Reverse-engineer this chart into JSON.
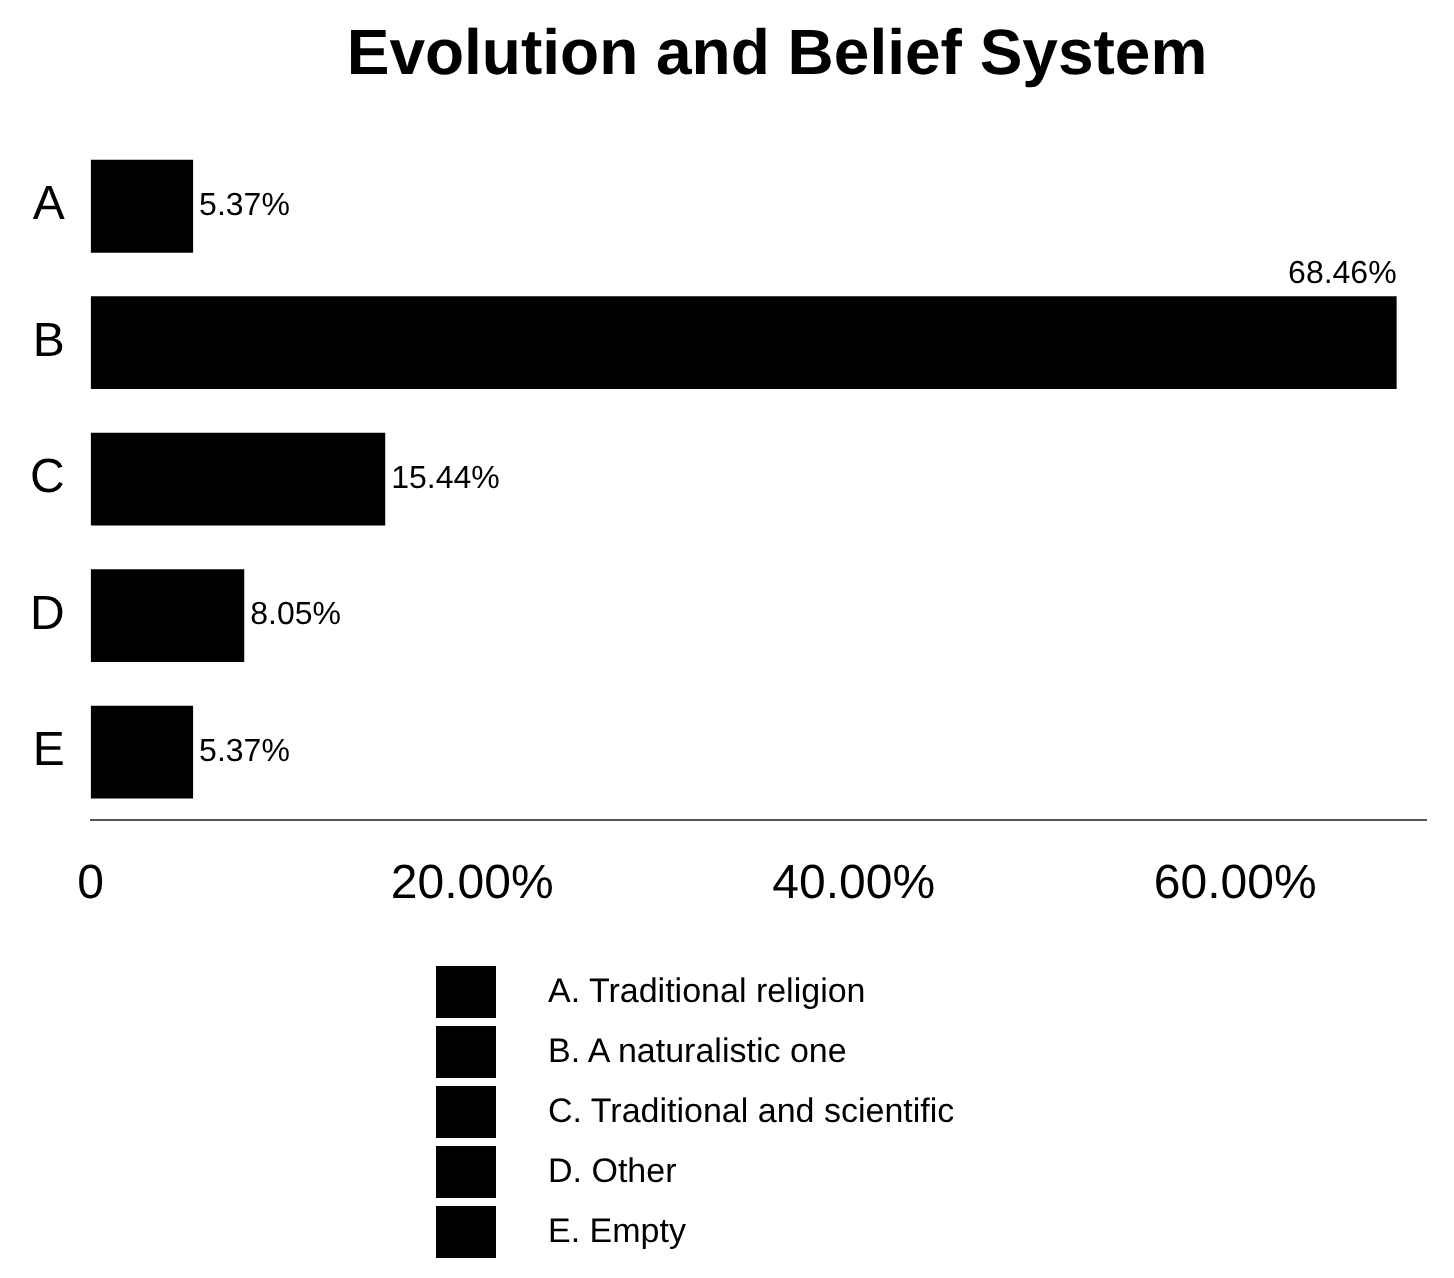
{
  "chart_data": {
    "type": "bar",
    "title": "Evolution and Belief System",
    "orientation": "horizontal",
    "categories": [
      "A",
      "B",
      "C",
      "D",
      "E"
    ],
    "series": [
      {
        "name": "A. Traditional religion",
        "color": "#000000",
        "values": [
          5.37,
          null,
          null,
          null,
          null
        ],
        "value_labels": [
          "5.37%",
          null,
          null,
          null,
          null
        ]
      },
      {
        "name": "B. A naturalistic one",
        "color": "#000000",
        "values": [
          null,
          68.46,
          null,
          null,
          null
        ],
        "value_labels": [
          null,
          "68.46%",
          null,
          null,
          null
        ]
      },
      {
        "name": "C. Traditional and scientific",
        "color": "#000000",
        "values": [
          null,
          null,
          15.44,
          null,
          null
        ],
        "value_labels": [
          null,
          null,
          "15.44%",
          null,
          null
        ]
      },
      {
        "name": "D. Other",
        "color": "#000000",
        "values": [
          null,
          null,
          null,
          8.05,
          null
        ],
        "value_labels": [
          null,
          null,
          null,
          "8.05%",
          null
        ]
      },
      {
        "name": "E. Empty",
        "color": "#000000",
        "values": [
          null,
          null,
          null,
          null,
          5.37
        ],
        "value_labels": [
          null,
          null,
          null,
          null,
          "5.37%"
        ]
      }
    ],
    "xlim": [
      0,
      70
    ],
    "xticks": [
      0,
      {
        "value": 20,
        "label": "20.00%"
      },
      {
        "value": 40,
        "label": "40.00%"
      },
      {
        "value": 60,
        "label": "60.00%"
      }
    ],
    "grid": false,
    "legend": "bottom"
  }
}
